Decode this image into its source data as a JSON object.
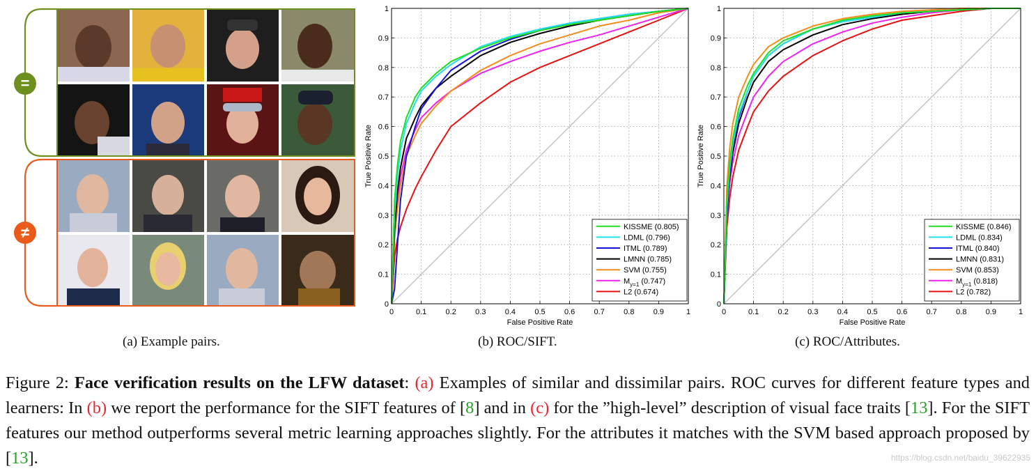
{
  "panel_a": {
    "caption": "(a) Example pairs.",
    "similar_symbol": "=",
    "dissimilar_symbol": "≠",
    "similar_color": "#6e8f1e",
    "dissimilar_color": "#ea5a1a"
  },
  "caption": {
    "prefix": "Figure 2: ",
    "bold": "Face verification results on the LFW dataset",
    "colon": ": ",
    "ref_a": "(a)",
    "t1": " Examples of similar and dissimilar pairs. ROC curves for different feature types and learners: In ",
    "ref_b": "(b)",
    "t2": " we report the performance for the SIFT features of [",
    "ref_8": "8",
    "t3": "] and in ",
    "ref_c": "(c)",
    "t4": " for the ”high-level” description of visual face traits [",
    "ref_13a": "13",
    "t5": "]. For the SIFT features our method outperforms several metric learning approaches slightly. For the attributes it matches with the SVM based approach proposed by [",
    "ref_13b": "13",
    "t6": "]."
  },
  "watermark": "https://blog.csdn.net/baidu_39622935",
  "chart_data": [
    {
      "type": "line",
      "caption": "(b) ROC/SIFT.",
      "xlabel": "False Positive Rate",
      "ylabel": "True Positive Rate",
      "xlim": [
        0,
        1
      ],
      "ylim": [
        0,
        1
      ],
      "xticks": [
        "0",
        "0.1",
        "0.2",
        "0.3",
        "0.4",
        "0.5",
        "0.6",
        "0.7",
        "0.8",
        "0.9",
        "1"
      ],
      "yticks": [
        "0",
        "0.1",
        "0.2",
        "0.3",
        "0.4",
        "0.5",
        "0.6",
        "0.7",
        "0.8",
        "0.9",
        "1"
      ],
      "grid": true,
      "legend_position": "bottom-right",
      "series": [
        {
          "name": "KISSME (0.805)",
          "color": "#22dd22",
          "x": [
            0,
            0.01,
            0.02,
            0.03,
            0.05,
            0.08,
            0.1,
            0.15,
            0.2,
            0.3,
            0.4,
            0.5,
            0.6,
            0.7,
            0.8,
            0.9,
            1
          ],
          "y": [
            0,
            0.35,
            0.47,
            0.55,
            0.63,
            0.7,
            0.73,
            0.78,
            0.82,
            0.865,
            0.9,
            0.925,
            0.945,
            0.96,
            0.975,
            0.99,
            1
          ]
        },
        {
          "name": "LDML (0.796)",
          "color": "#22e0ee",
          "x": [
            0,
            0.01,
            0.02,
            0.03,
            0.05,
            0.08,
            0.1,
            0.15,
            0.2,
            0.3,
            0.4,
            0.5,
            0.6,
            0.7,
            0.8,
            0.9,
            1
          ],
          "y": [
            0,
            0.3,
            0.43,
            0.52,
            0.61,
            0.68,
            0.72,
            0.77,
            0.81,
            0.87,
            0.905,
            0.93,
            0.95,
            0.965,
            0.98,
            0.99,
            1
          ]
        },
        {
          "name": "ITML (0.789)",
          "color": "#1212d8",
          "x": [
            0,
            0.01,
            0.02,
            0.03,
            0.05,
            0.08,
            0.1,
            0.15,
            0.2,
            0.3,
            0.4,
            0.5,
            0.6,
            0.7,
            0.8,
            0.9,
            1
          ],
          "y": [
            0,
            0.05,
            0.2,
            0.35,
            0.5,
            0.6,
            0.66,
            0.73,
            0.79,
            0.855,
            0.895,
            0.925,
            0.95,
            0.965,
            0.98,
            0.99,
            1
          ]
        },
        {
          "name": "LMNN (0.785)",
          "color": "#000000",
          "x": [
            0,
            0.01,
            0.02,
            0.03,
            0.05,
            0.08,
            0.1,
            0.15,
            0.2,
            0.3,
            0.4,
            0.5,
            0.6,
            0.7,
            0.8,
            0.9,
            1
          ],
          "y": [
            0,
            0.25,
            0.38,
            0.46,
            0.56,
            0.63,
            0.67,
            0.73,
            0.77,
            0.84,
            0.885,
            0.915,
            0.94,
            0.96,
            0.975,
            0.99,
            1
          ]
        },
        {
          "name": "SVM (0.755)",
          "color": "#f28c1a",
          "x": [
            0,
            0.01,
            0.02,
            0.03,
            0.05,
            0.08,
            0.1,
            0.15,
            0.2,
            0.3,
            0.4,
            0.5,
            0.6,
            0.7,
            0.8,
            0.9,
            1
          ],
          "y": [
            0,
            0.22,
            0.32,
            0.4,
            0.5,
            0.57,
            0.61,
            0.67,
            0.72,
            0.79,
            0.84,
            0.88,
            0.91,
            0.94,
            0.96,
            0.985,
            1
          ]
        },
        {
          "name": "M_y=1 (0.747)",
          "name_main": "M",
          "name_sub": "y=1",
          "name_rest": " (0.747)",
          "color": "#ee22ee",
          "x": [
            0,
            0.01,
            0.02,
            0.03,
            0.05,
            0.08,
            0.1,
            0.15,
            0.2,
            0.3,
            0.4,
            0.5,
            0.6,
            0.7,
            0.8,
            0.9,
            1
          ],
          "y": [
            0,
            0.24,
            0.35,
            0.43,
            0.52,
            0.59,
            0.63,
            0.68,
            0.72,
            0.78,
            0.82,
            0.855,
            0.885,
            0.91,
            0.94,
            0.97,
            1
          ]
        },
        {
          "name": "L2 (0.674)",
          "color": "#e81010",
          "x": [
            0,
            0.01,
            0.02,
            0.03,
            0.05,
            0.08,
            0.1,
            0.15,
            0.2,
            0.3,
            0.4,
            0.5,
            0.6,
            0.7,
            0.8,
            0.9,
            1
          ],
          "y": [
            0,
            0.16,
            0.22,
            0.26,
            0.32,
            0.39,
            0.43,
            0.52,
            0.6,
            0.68,
            0.75,
            0.8,
            0.84,
            0.88,
            0.92,
            0.96,
            1
          ]
        }
      ]
    },
    {
      "type": "line",
      "caption": "(c) ROC/Attributes.",
      "xlabel": "False Positive Rate",
      "ylabel": "True Positive Rate",
      "xlim": [
        0,
        1
      ],
      "ylim": [
        0,
        1
      ],
      "xticks": [
        "0",
        "0.1",
        "0.2",
        "0.3",
        "0.4",
        "0.5",
        "0.6",
        "0.7",
        "0.8",
        "0.9",
        "1"
      ],
      "yticks": [
        "0",
        "0.1",
        "0.2",
        "0.3",
        "0.4",
        "0.5",
        "0.6",
        "0.7",
        "0.8",
        "0.9",
        "1"
      ],
      "grid": true,
      "legend_position": "bottom-right",
      "series": [
        {
          "name": "KISSME (0.846)",
          "color": "#22dd22",
          "x": [
            0,
            0.01,
            0.02,
            0.03,
            0.05,
            0.08,
            0.1,
            0.15,
            0.2,
            0.3,
            0.4,
            0.5,
            0.6,
            0.7,
            0.8,
            0.9,
            1
          ],
          "y": [
            0,
            0.35,
            0.48,
            0.56,
            0.66,
            0.74,
            0.78,
            0.85,
            0.89,
            0.93,
            0.96,
            0.975,
            0.985,
            0.99,
            0.995,
            1,
            1
          ]
        },
        {
          "name": "LDML (0.834)",
          "color": "#22e0ee",
          "x": [
            0,
            0.01,
            0.02,
            0.03,
            0.05,
            0.08,
            0.1,
            0.15,
            0.2,
            0.3,
            0.4,
            0.5,
            0.6,
            0.7,
            0.8,
            0.9,
            1
          ],
          "y": [
            0,
            0.33,
            0.46,
            0.54,
            0.64,
            0.72,
            0.77,
            0.84,
            0.88,
            0.93,
            0.955,
            0.97,
            0.985,
            0.99,
            0.995,
            1,
            1
          ]
        },
        {
          "name": "ITML (0.840)",
          "color": "#1212d8",
          "x": [
            0,
            0.01,
            0.02,
            0.03,
            0.05,
            0.08,
            0.1,
            0.15,
            0.2,
            0.3,
            0.4,
            0.5,
            0.6,
            0.7,
            0.8,
            0.9,
            1
          ],
          "y": [
            0,
            0.3,
            0.44,
            0.53,
            0.63,
            0.72,
            0.77,
            0.84,
            0.88,
            0.93,
            0.955,
            0.97,
            0.985,
            0.99,
            0.995,
            1,
            1
          ]
        },
        {
          "name": "LMNN (0.831)",
          "color": "#000000",
          "x": [
            0,
            0.01,
            0.02,
            0.03,
            0.05,
            0.08,
            0.1,
            0.15,
            0.2,
            0.3,
            0.4,
            0.5,
            0.6,
            0.7,
            0.8,
            0.9,
            1
          ],
          "y": [
            0,
            0.31,
            0.43,
            0.51,
            0.61,
            0.7,
            0.75,
            0.82,
            0.86,
            0.91,
            0.945,
            0.965,
            0.98,
            0.99,
            0.995,
            1,
            1
          ]
        },
        {
          "name": "SVM (0.853)",
          "color": "#f28c1a",
          "x": [
            0,
            0.01,
            0.02,
            0.03,
            0.05,
            0.08,
            0.1,
            0.15,
            0.2,
            0.3,
            0.4,
            0.5,
            0.6,
            0.7,
            0.8,
            0.9,
            1
          ],
          "y": [
            0,
            0.4,
            0.53,
            0.61,
            0.7,
            0.77,
            0.81,
            0.87,
            0.9,
            0.94,
            0.965,
            0.98,
            0.99,
            0.995,
            1,
            1,
            1
          ]
        },
        {
          "name": "M_y=1 (0.818)",
          "name_main": "M",
          "name_sub": "y=1",
          "name_rest": " (0.818)",
          "color": "#ee22ee",
          "x": [
            0,
            0.01,
            0.02,
            0.03,
            0.05,
            0.08,
            0.1,
            0.15,
            0.2,
            0.3,
            0.4,
            0.5,
            0.6,
            0.7,
            0.8,
            0.9,
            1
          ],
          "y": [
            0,
            0.3,
            0.41,
            0.48,
            0.57,
            0.65,
            0.7,
            0.77,
            0.82,
            0.88,
            0.92,
            0.95,
            0.97,
            0.985,
            0.995,
            1,
            1
          ]
        },
        {
          "name": "L2 (0.782)",
          "color": "#e81010",
          "x": [
            0,
            0.01,
            0.02,
            0.03,
            0.05,
            0.08,
            0.1,
            0.15,
            0.2,
            0.3,
            0.4,
            0.5,
            0.6,
            0.7,
            0.8,
            0.9,
            1
          ],
          "y": [
            0,
            0.26,
            0.36,
            0.43,
            0.52,
            0.6,
            0.65,
            0.72,
            0.77,
            0.84,
            0.89,
            0.93,
            0.96,
            0.975,
            0.99,
            1,
            1
          ]
        }
      ]
    }
  ]
}
